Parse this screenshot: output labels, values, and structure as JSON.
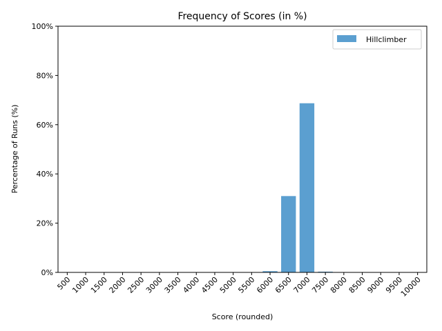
{
  "chart_data": {
    "type": "bar",
    "title": "Frequency of Scores (in %)",
    "xlabel": "Score (rounded)",
    "ylabel": "Percentage of Runs (%)",
    "categories": [
      "500",
      "1000",
      "1500",
      "2000",
      "2500",
      "3000",
      "3500",
      "4000",
      "4500",
      "5000",
      "5500",
      "6000",
      "6500",
      "7000",
      "7500",
      "8000",
      "8500",
      "9000",
      "9500",
      "10000"
    ],
    "series": [
      {
        "name": "Hillclimber",
        "color": "#5b9fd0",
        "values": [
          0,
          0,
          0,
          0,
          0,
          0,
          0,
          0,
          0,
          0,
          0,
          0.5,
          31,
          68.7,
          0.3,
          0,
          0,
          0,
          0,
          0
        ]
      }
    ],
    "ylim": [
      0,
      100
    ],
    "yticks": [
      0,
      20,
      40,
      60,
      80,
      100
    ],
    "ytick_labels": [
      "0%",
      "20%",
      "40%",
      "60%",
      "80%",
      "100%"
    ],
    "grid": false,
    "legend_position": "top-right"
  }
}
